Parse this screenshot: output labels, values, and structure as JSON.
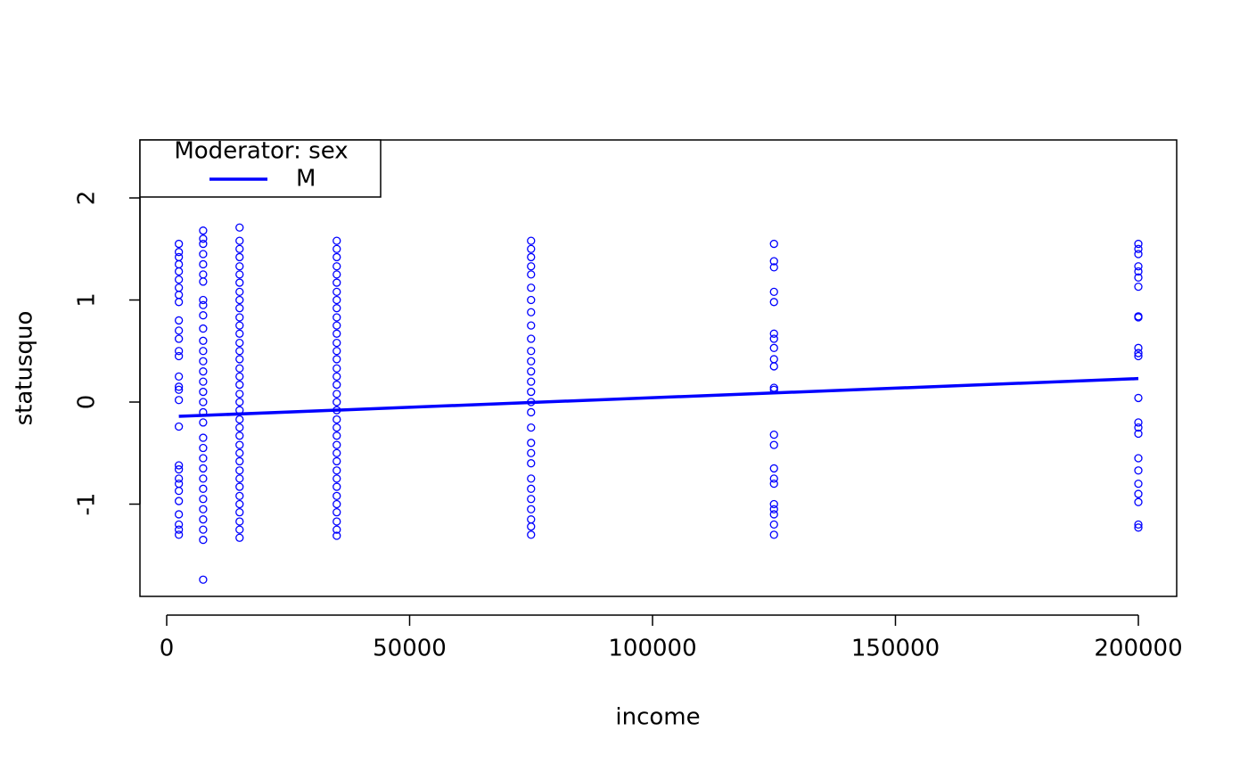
{
  "chart_data": {
    "type": "scatter",
    "x_label": "income",
    "y_label": "statusquo",
    "xlim": [
      -5505,
      207890
    ],
    "ylim": [
      -1.904,
      2.568
    ],
    "xticks": [
      0,
      50000,
      100000,
      150000,
      200000
    ],
    "yticks": [
      -1,
      0,
      1,
      2
    ],
    "point_color": "#0000ff",
    "points": [
      {
        "x": 2500,
        "y": [
          1.55,
          1.47,
          1.42,
          1.35,
          1.28,
          1.2,
          1.12,
          1.05,
          0.98,
          0.8,
          0.7,
          0.62,
          0.5,
          0.45,
          0.25,
          0.15,
          0.12,
          0.02,
          -0.24,
          -0.62,
          -0.66,
          -0.75,
          -0.8,
          -0.87,
          -0.97,
          -1.1,
          -1.2,
          -1.25,
          -1.3
        ]
      },
      {
        "x": 7500,
        "y": [
          1.68,
          1.6,
          1.55,
          1.45,
          1.35,
          1.25,
          1.18,
          1.0,
          0.95,
          0.85,
          0.72,
          0.6,
          0.5,
          0.4,
          0.3,
          0.2,
          0.1,
          0.0,
          -0.1,
          -0.2,
          -0.35,
          -0.45,
          -0.55,
          -0.65,
          -0.75,
          -0.85,
          -0.95,
          -1.05,
          -1.15,
          -1.25,
          -1.35,
          -1.74
        ]
      },
      {
        "x": 15000,
        "y": [
          1.71,
          1.58,
          1.5,
          1.42,
          1.33,
          1.25,
          1.17,
          1.08,
          1.0,
          0.92,
          0.83,
          0.75,
          0.67,
          0.58,
          0.5,
          0.42,
          0.33,
          0.25,
          0.17,
          0.08,
          0.0,
          -0.08,
          -0.17,
          -0.25,
          -0.33,
          -0.42,
          -0.5,
          -0.58,
          -0.67,
          -0.75,
          -0.83,
          -0.92,
          -1.0,
          -1.08,
          -1.17,
          -1.25,
          -1.33
        ]
      },
      {
        "x": 35000,
        "y": [
          1.58,
          1.5,
          1.42,
          1.33,
          1.25,
          1.17,
          1.08,
          1.0,
          0.92,
          0.83,
          0.75,
          0.67,
          0.58,
          0.5,
          0.42,
          0.33,
          0.25,
          0.17,
          0.08,
          0.0,
          -0.08,
          -0.17,
          -0.25,
          -0.33,
          -0.42,
          -0.5,
          -0.58,
          -0.67,
          -0.75,
          -0.83,
          -0.92,
          -1.0,
          -1.08,
          -1.17,
          -1.25,
          -1.31
        ]
      },
      {
        "x": 75000,
        "y": [
          1.58,
          1.5,
          1.42,
          1.33,
          1.25,
          1.12,
          1.0,
          0.88,
          0.75,
          0.62,
          0.5,
          0.4,
          0.3,
          0.2,
          0.1,
          0.0,
          -0.1,
          -0.25,
          -0.4,
          -0.5,
          -0.6,
          -0.75,
          -0.85,
          -0.95,
          -1.05,
          -1.15,
          -1.22,
          -1.3
        ]
      },
      {
        "x": 125000,
        "y": [
          1.55,
          1.38,
          1.32,
          1.08,
          0.98,
          0.67,
          0.62,
          0.53,
          0.42,
          0.35,
          0.14,
          0.12,
          -0.32,
          -0.42,
          -0.65,
          -0.75,
          -0.8,
          -1.0,
          -1.05,
          -1.1,
          -1.2,
          -1.3
        ]
      },
      {
        "x": 200000,
        "y": [
          1.55,
          1.5,
          1.45,
          1.33,
          1.28,
          1.22,
          1.13,
          0.84,
          0.83,
          0.53,
          0.48,
          0.45,
          0.04,
          -0.2,
          -0.25,
          -0.31,
          -0.55,
          -0.67,
          -0.8,
          -0.9,
          -0.98,
          -1.2,
          -1.23
        ]
      }
    ],
    "legend_title": "Moderator: sex",
    "legend_position": "top-left",
    "series": [
      {
        "name": "M",
        "color": "#0000ff",
        "x": [
          2500,
          200000
        ],
        "values": [
          -0.14,
          0.23
        ]
      }
    ]
  }
}
